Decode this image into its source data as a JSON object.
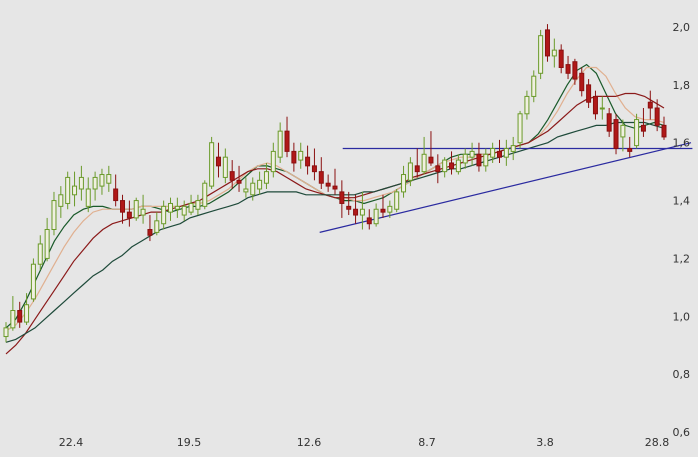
{
  "chart_data": {
    "type": "candlestick",
    "x_tick_labels": [
      "22.4",
      "19.5",
      "12.6",
      "8.7",
      "3.8",
      "28.8"
    ],
    "y_tick_labels": [
      "2,0",
      "1,8",
      "1,6",
      "1,4",
      "1,2",
      "1,0",
      "0,8",
      "0,6"
    ],
    "y_ticks": [
      2.0,
      1.8,
      1.6,
      1.4,
      1.2,
      1.0,
      0.8,
      0.6
    ],
    "ylim": [
      0.6,
      2.0
    ],
    "grid": false,
    "candles": [
      [
        0.93,
        0.98,
        0.91,
        0.96
      ],
      [
        0.96,
        1.07,
        0.95,
        1.02
      ],
      [
        1.02,
        1.05,
        0.96,
        0.98
      ],
      [
        0.98,
        1.08,
        0.97,
        1.04
      ],
      [
        1.06,
        1.2,
        1.05,
        1.18
      ],
      [
        1.18,
        1.28,
        1.16,
        1.25
      ],
      [
        1.2,
        1.34,
        1.19,
        1.3
      ],
      [
        1.3,
        1.43,
        1.28,
        1.4
      ],
      [
        1.38,
        1.45,
        1.34,
        1.42
      ],
      [
        1.39,
        1.5,
        1.37,
        1.48
      ],
      [
        1.42,
        1.5,
        1.38,
        1.45
      ],
      [
        1.44,
        1.52,
        1.4,
        1.48
      ],
      [
        1.38,
        1.48,
        1.36,
        1.44
      ],
      [
        1.44,
        1.5,
        1.4,
        1.48
      ],
      [
        1.45,
        1.51,
        1.42,
        1.49
      ],
      [
        1.46,
        1.52,
        1.43,
        1.49
      ],
      [
        1.44,
        1.49,
        1.38,
        1.4
      ],
      [
        1.4,
        1.42,
        1.32,
        1.36
      ],
      [
        1.36,
        1.4,
        1.31,
        1.34
      ],
      [
        1.34,
        1.41,
        1.33,
        1.4
      ],
      [
        1.35,
        1.42,
        1.32,
        1.37
      ],
      [
        1.3,
        1.35,
        1.26,
        1.28
      ],
      [
        1.29,
        1.36,
        1.28,
        1.33
      ],
      [
        1.32,
        1.4,
        1.3,
        1.38
      ],
      [
        1.36,
        1.41,
        1.33,
        1.39
      ],
      [
        1.37,
        1.41,
        1.34,
        1.38
      ],
      [
        1.35,
        1.4,
        1.33,
        1.38
      ],
      [
        1.36,
        1.42,
        1.35,
        1.39
      ],
      [
        1.37,
        1.42,
        1.35,
        1.4
      ],
      [
        1.38,
        1.47,
        1.37,
        1.46
      ],
      [
        1.45,
        1.62,
        1.44,
        1.6
      ],
      [
        1.55,
        1.6,
        1.48,
        1.52
      ],
      [
        1.48,
        1.58,
        1.46,
        1.55
      ],
      [
        1.5,
        1.54,
        1.44,
        1.47
      ],
      [
        1.47,
        1.52,
        1.43,
        1.46
      ],
      [
        1.43,
        1.48,
        1.41,
        1.44
      ],
      [
        1.42,
        1.48,
        1.4,
        1.46
      ],
      [
        1.44,
        1.5,
        1.42,
        1.47
      ],
      [
        1.46,
        1.53,
        1.44,
        1.5
      ],
      [
        1.5,
        1.6,
        1.48,
        1.57
      ],
      [
        1.55,
        1.67,
        1.53,
        1.64
      ],
      [
        1.64,
        1.69,
        1.55,
        1.57
      ],
      [
        1.57,
        1.6,
        1.5,
        1.53
      ],
      [
        1.54,
        1.6,
        1.51,
        1.57
      ],
      [
        1.55,
        1.59,
        1.49,
        1.52
      ],
      [
        1.52,
        1.58,
        1.47,
        1.5
      ],
      [
        1.5,
        1.55,
        1.44,
        1.46
      ],
      [
        1.46,
        1.49,
        1.43,
        1.45
      ],
      [
        1.45,
        1.51,
        1.42,
        1.44
      ],
      [
        1.43,
        1.47,
        1.34,
        1.39
      ],
      [
        1.38,
        1.43,
        1.35,
        1.37
      ],
      [
        1.37,
        1.42,
        1.32,
        1.35
      ],
      [
        1.35,
        1.43,
        1.3,
        1.37
      ],
      [
        1.34,
        1.37,
        1.3,
        1.32
      ],
      [
        1.32,
        1.39,
        1.31,
        1.37
      ],
      [
        1.37,
        1.42,
        1.34,
        1.36
      ],
      [
        1.36,
        1.4,
        1.34,
        1.38
      ],
      [
        1.37,
        1.44,
        1.36,
        1.43
      ],
      [
        1.43,
        1.52,
        1.41,
        1.49
      ],
      [
        1.47,
        1.55,
        1.45,
        1.53
      ],
      [
        1.52,
        1.58,
        1.48,
        1.5
      ],
      [
        1.5,
        1.62,
        1.49,
        1.56
      ],
      [
        1.55,
        1.64,
        1.52,
        1.53
      ],
      [
        1.52,
        1.56,
        1.46,
        1.5
      ],
      [
        1.5,
        1.55,
        1.48,
        1.54
      ],
      [
        1.53,
        1.57,
        1.49,
        1.51
      ],
      [
        1.5,
        1.56,
        1.49,
        1.54
      ],
      [
        1.53,
        1.58,
        1.51,
        1.56
      ],
      [
        1.55,
        1.6,
        1.52,
        1.57
      ],
      [
        1.56,
        1.6,
        1.5,
        1.52
      ],
      [
        1.52,
        1.58,
        1.5,
        1.56
      ],
      [
        1.55,
        1.6,
        1.53,
        1.58
      ],
      [
        1.57,
        1.61,
        1.53,
        1.55
      ],
      [
        1.55,
        1.61,
        1.52,
        1.58
      ],
      [
        1.57,
        1.62,
        1.54,
        1.59
      ],
      [
        1.6,
        1.71,
        1.58,
        1.7
      ],
      [
        1.7,
        1.78,
        1.68,
        1.76
      ],
      [
        1.76,
        1.85,
        1.74,
        1.83
      ],
      [
        1.84,
        1.99,
        1.82,
        1.97
      ],
      [
        1.99,
        2.01,
        1.88,
        1.9
      ],
      [
        1.9,
        1.96,
        1.86,
        1.92
      ],
      [
        1.92,
        1.94,
        1.84,
        1.86
      ],
      [
        1.87,
        1.9,
        1.82,
        1.84
      ],
      [
        1.88,
        1.89,
        1.8,
        1.82
      ],
      [
        1.84,
        1.86,
        1.76,
        1.78
      ],
      [
        1.8,
        1.82,
        1.72,
        1.74
      ],
      [
        1.76,
        1.78,
        1.68,
        1.7
      ],
      [
        1.72,
        1.76,
        1.68,
        1.72
      ],
      [
        1.7,
        1.72,
        1.62,
        1.64
      ],
      [
        1.68,
        1.7,
        1.56,
        1.58
      ],
      [
        1.62,
        1.68,
        1.57,
        1.66
      ],
      [
        1.58,
        1.62,
        1.55,
        1.57
      ],
      [
        1.59,
        1.7,
        1.58,
        1.68
      ],
      [
        1.66,
        1.72,
        1.62,
        1.64
      ],
      [
        1.74,
        1.78,
        1.68,
        1.72
      ],
      [
        1.72,
        1.75,
        1.64,
        1.66
      ],
      [
        1.66,
        1.69,
        1.61,
        1.62
      ]
    ],
    "indicator_lines": [
      {
        "color": "#1a5a2a",
        "values": [
          0.96,
          0.99,
          1.05,
          1.12,
          1.19,
          1.26,
          1.31,
          1.35,
          1.37,
          1.38,
          1.38,
          1.37,
          1.37,
          1.37,
          1.38,
          1.38,
          1.37,
          1.36,
          1.37,
          1.38,
          1.38,
          1.39,
          1.41,
          1.43,
          1.46,
          1.49,
          1.52,
          1.52,
          1.51,
          1.5,
          1.48,
          1.46,
          1.44,
          1.42,
          1.41,
          1.4,
          1.4,
          1.39,
          1.4,
          1.41,
          1.43,
          1.45,
          1.47,
          1.49,
          1.51,
          1.53,
          1.55,
          1.56,
          1.56,
          1.56,
          1.56,
          1.57,
          1.58,
          1.59,
          1.6,
          1.63,
          1.68,
          1.74,
          1.8,
          1.85,
          1.87,
          1.84,
          1.77,
          1.7,
          1.66,
          1.65,
          1.66,
          1.67,
          1.66
        ]
      },
      {
        "color": "#e0b090",
        "values": [
          0.95,
          0.97,
          1.01,
          1.06,
          1.12,
          1.18,
          1.24,
          1.29,
          1.33,
          1.36,
          1.37,
          1.37,
          1.37,
          1.37,
          1.38,
          1.38,
          1.38,
          1.38,
          1.38,
          1.39,
          1.39,
          1.4,
          1.42,
          1.44,
          1.47,
          1.5,
          1.52,
          1.53,
          1.52,
          1.5,
          1.48,
          1.46,
          1.44,
          1.42,
          1.41,
          1.41,
          1.4,
          1.4,
          1.41,
          1.42,
          1.43,
          1.45,
          1.47,
          1.49,
          1.51,
          1.53,
          1.54,
          1.55,
          1.55,
          1.56,
          1.56,
          1.57,
          1.58,
          1.59,
          1.6,
          1.62,
          1.66,
          1.71,
          1.77,
          1.82,
          1.86,
          1.86,
          1.83,
          1.77,
          1.72,
          1.69,
          1.68,
          1.68,
          1.67
        ]
      },
      {
        "color": "#8b1a1a",
        "values": [
          0.87,
          0.9,
          0.94,
          0.99,
          1.04,
          1.09,
          1.14,
          1.19,
          1.23,
          1.27,
          1.3,
          1.32,
          1.33,
          1.34,
          1.35,
          1.36,
          1.36,
          1.37,
          1.38,
          1.39,
          1.4,
          1.42,
          1.44,
          1.46,
          1.48,
          1.5,
          1.51,
          1.51,
          1.5,
          1.48,
          1.46,
          1.44,
          1.43,
          1.42,
          1.41,
          1.41,
          1.41,
          1.42,
          1.43,
          1.44,
          1.45,
          1.46,
          1.48,
          1.49,
          1.5,
          1.51,
          1.52,
          1.53,
          1.54,
          1.55,
          1.56,
          1.57,
          1.58,
          1.59,
          1.6,
          1.62,
          1.64,
          1.67,
          1.7,
          1.73,
          1.75,
          1.76,
          1.76,
          1.76,
          1.77,
          1.77,
          1.76,
          1.74,
          1.72
        ]
      },
      {
        "color": "#1e4a3a",
        "values": [
          0.91,
          0.92,
          0.94,
          0.96,
          0.99,
          1.02,
          1.05,
          1.08,
          1.11,
          1.14,
          1.16,
          1.19,
          1.21,
          1.24,
          1.26,
          1.28,
          1.3,
          1.31,
          1.32,
          1.34,
          1.35,
          1.36,
          1.37,
          1.38,
          1.39,
          1.41,
          1.42,
          1.43,
          1.43,
          1.43,
          1.43,
          1.42,
          1.42,
          1.42,
          1.42,
          1.42,
          1.42,
          1.43,
          1.43,
          1.44,
          1.45,
          1.46,
          1.47,
          1.48,
          1.49,
          1.5,
          1.51,
          1.51,
          1.52,
          1.53,
          1.54,
          1.55,
          1.56,
          1.57,
          1.58,
          1.59,
          1.6,
          1.62,
          1.63,
          1.64,
          1.65,
          1.66,
          1.66,
          1.67,
          1.67,
          1.67,
          1.67,
          1.66,
          1.65
        ]
      }
    ],
    "trendlines": [
      {
        "color": "#2a2aa0",
        "points": [
          [
            0.491,
            1.58
          ],
          [
            0.992,
            1.58
          ]
        ]
      },
      {
        "color": "#2a2aa0",
        "points": [
          [
            0.458,
            1.29
          ],
          [
            0.99,
            1.6
          ]
        ]
      }
    ]
  }
}
